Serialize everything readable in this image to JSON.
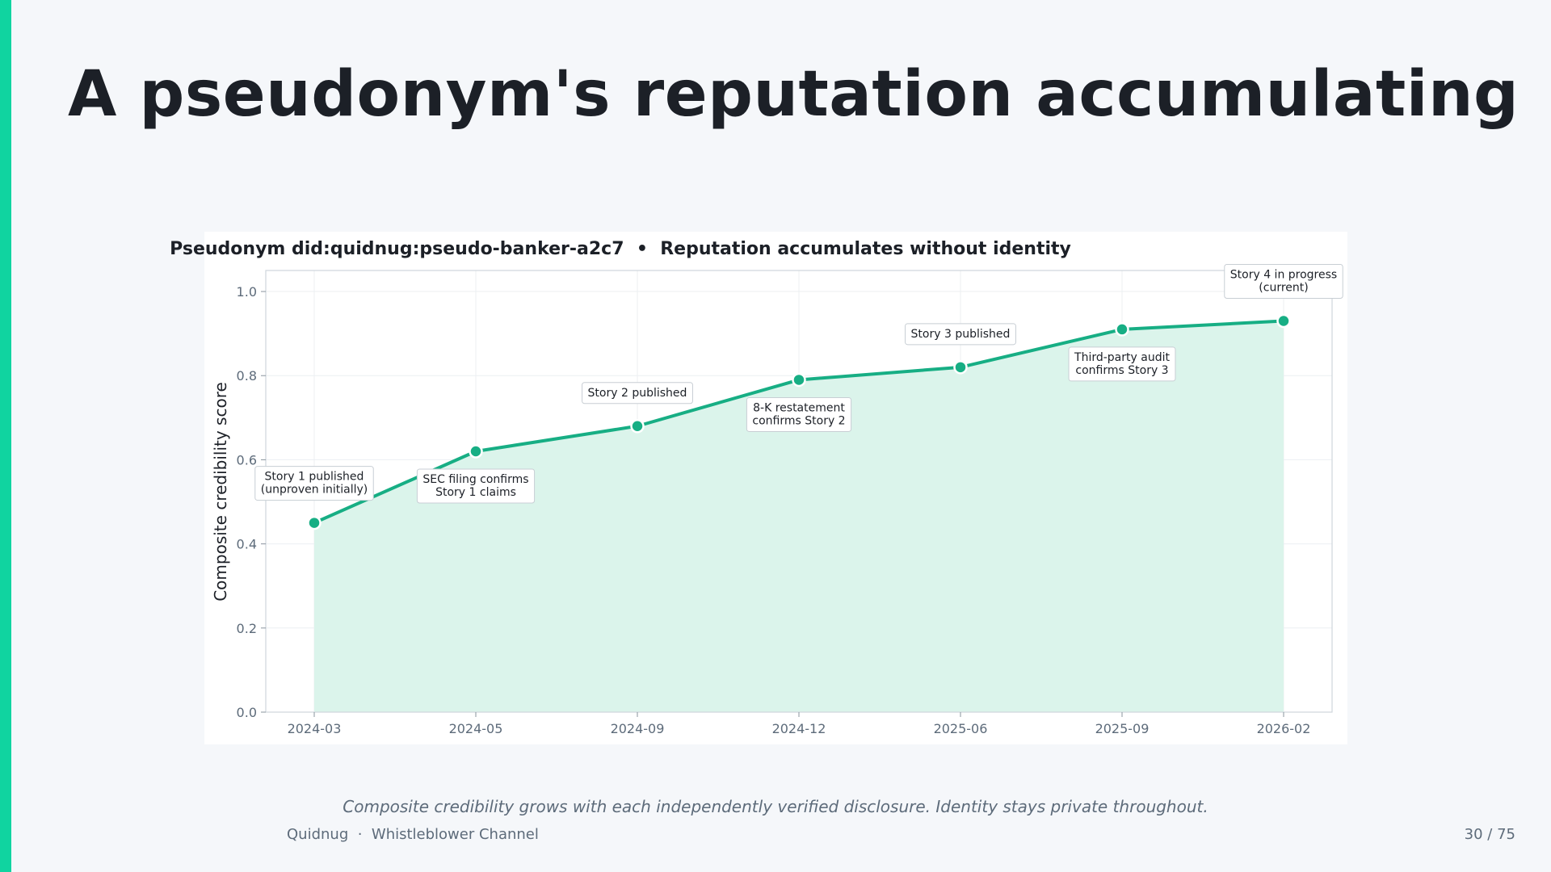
{
  "slide": {
    "title": "A pseudonym's reputation accumulating",
    "caption": "Composite credibility grows with each independently verified disclosure. Identity stays private throughout.",
    "footer_brand": "Quidnug",
    "footer_separator": "·",
    "footer_section": "Whistleblower Channel",
    "page_number": "30 / 75",
    "accent_color": "#10d4a0"
  },
  "chart_data": {
    "type": "area",
    "title": "Pseudonym did:quidnug:pseudo-banker-a2c7  •  Reputation accumulates without identity",
    "xlabel": "",
    "ylabel": "Composite credibility score",
    "ylim": [
      0,
      1.05
    ],
    "yticks": [
      "0.0",
      "0.2",
      "0.4",
      "0.6",
      "0.8",
      "1.0"
    ],
    "grid": true,
    "line_color": "#17ae84",
    "fill_color": "#dbf4eb",
    "categories": [
      "2024-03",
      "2024-05",
      "2024-09",
      "2024-12",
      "2025-06",
      "2025-09",
      "2026-02"
    ],
    "series": [
      {
        "values": [
          0.45,
          0.62,
          0.68,
          0.79,
          0.82,
          0.91,
          0.93
        ]
      }
    ],
    "annotations": [
      {
        "lines": [
          "Story 1 published",
          "(unproven initially)"
        ],
        "position": "above"
      },
      {
        "lines": [
          "SEC filing confirms",
          "Story 1 claims"
        ],
        "position": "below"
      },
      {
        "lines": [
          "Story 2 published"
        ],
        "position": "above"
      },
      {
        "lines": [
          "8-K restatement",
          "confirms Story 2"
        ],
        "position": "below"
      },
      {
        "lines": [
          "Story 3 published"
        ],
        "position": "above"
      },
      {
        "lines": [
          "Third-party audit",
          "confirms Story 3"
        ],
        "position": "below"
      },
      {
        "lines": [
          "Story 4 in progress",
          "(current)"
        ],
        "position": "above"
      }
    ]
  }
}
